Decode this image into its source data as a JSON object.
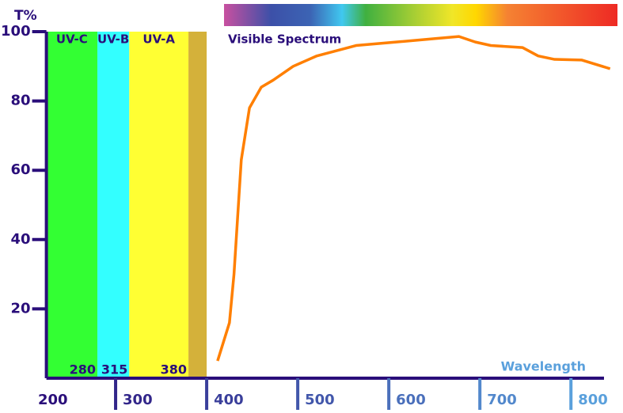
{
  "chart_data": {
    "type": "line",
    "y_label": "T%",
    "x_label": "Wavelength",
    "visible_label": "Visible Spectrum",
    "x": [
      412,
      425,
      430,
      438,
      447,
      460,
      473,
      495,
      521,
      564,
      608,
      651,
      677,
      695,
      712,
      747,
      764,
      782,
      812,
      843
    ],
    "series": [
      {
        "color": "#ff7f00",
        "values": [
          5,
          16,
          30,
          63,
          78,
          84,
          86,
          90,
          93,
          96,
          97,
          98,
          98.6,
          97,
          96,
          95.4,
          93,
          92,
          91.8,
          89.3
        ]
      }
    ],
    "bands": [
      {
        "name": "UV-C",
        "range": [
          224,
          280
        ],
        "color": "#33ff33"
      },
      {
        "name": "UV-B",
        "range": [
          280,
          315
        ],
        "color": "#33ffff"
      },
      {
        "name": "UV-A",
        "range": [
          315,
          380
        ],
        "color": "#ffff33"
      },
      {
        "range": [
          380,
          400
        ],
        "color": "#d4b13a"
      }
    ],
    "xlim": [
      200,
      845
    ],
    "xticks": [
      200,
      300,
      400,
      500,
      600,
      700,
      800
    ],
    "ylim": [
      0,
      100
    ],
    "yticks": [
      20,
      40,
      60,
      80,
      100
    ]
  }
}
